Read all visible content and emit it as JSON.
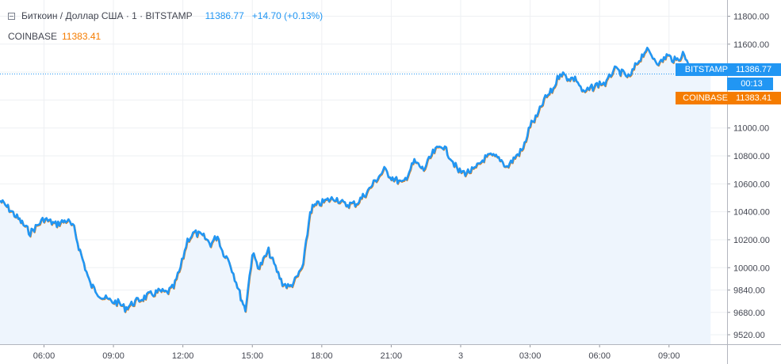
{
  "legend": {
    "title": "Биткоин / Доллар США · 1 · BITSTAMP",
    "last_value": "11386.77",
    "change": "+14.70 (+0.13%)",
    "secondary_name": "COINBASE",
    "secondary_value": "11383.41"
  },
  "price_tags": {
    "primary_label": "BITSTAMP",
    "primary_value": "11386.77",
    "countdown": "00:13",
    "secondary_label": "COINBASE",
    "secondary_value": "11383.41"
  },
  "colors": {
    "primary_line": "#2196f3",
    "primary_fill": "#eef5fd",
    "secondary_line": "#f57c00",
    "grid": "#eef0f3",
    "axis_text": "#434651"
  },
  "chart_data": {
    "type": "line",
    "grid": true,
    "y_ticks": [
      "11800.00",
      "11600.00",
      "11400.00",
      "11200.00",
      "11000.00",
      "10800.00",
      "10600.00",
      "10400.00",
      "10200.00",
      "10000.00",
      "9840.00",
      "9680.00",
      "9520.00"
    ],
    "y_tick_values": [
      11800,
      11600,
      11400,
      11200,
      11000,
      10800,
      10600,
      10400,
      10200,
      10000,
      9840,
      9680,
      9520
    ],
    "x_ticks": [
      "06:00",
      "09:00",
      "12:00",
      "15:00",
      "18:00",
      "21:00",
      "3",
      "03:00",
      "06:00",
      "09:00"
    ],
    "x_tick_hours": [
      6,
      9,
      12,
      15,
      18,
      21,
      24,
      27,
      30,
      33
    ],
    "x_range_hours": [
      4.1,
      35.2
    ],
    "series": [
      {
        "name": "BITSTAMP",
        "x": [
          4.1,
          4.5,
          5.0,
          5.4,
          5.7,
          6.0,
          6.5,
          7.0,
          7.3,
          7.5,
          8.0,
          8.5,
          8.9,
          9.2,
          9.5,
          10.0,
          10.5,
          11.0,
          11.3,
          11.6,
          11.9,
          12.2,
          12.5,
          12.9,
          13.2,
          13.5,
          13.7,
          14.0,
          14.3,
          14.5,
          14.7,
          15.0,
          15.3,
          15.7,
          16.0,
          16.3,
          16.6,
          16.9,
          17.2,
          17.5,
          17.6,
          17.8,
          18.2,
          18.6,
          19.0,
          19.5,
          20.0,
          20.3,
          20.7,
          21.0,
          21.5,
          22.0,
          22.4,
          22.8,
          23.2,
          23.6,
          23.9,
          24.2,
          24.6,
          25.0,
          25.3,
          25.7,
          26.0,
          26.4,
          26.7,
          27.0,
          27.3,
          27.6,
          28.0,
          28.3,
          28.6,
          29.0,
          29.3,
          29.6,
          30.0,
          30.3,
          30.6,
          30.9,
          31.3,
          31.6,
          32.0,
          32.3,
          32.6,
          32.9,
          33.3,
          33.6,
          34.0,
          34.3,
          34.6,
          34.8
        ],
        "y": [
          10480,
          10420,
          10330,
          10250,
          10300,
          10350,
          10310,
          10340,
          10280,
          10150,
          9880,
          9790,
          9760,
          9750,
          9710,
          9760,
          9800,
          9830,
          9820,
          9860,
          10000,
          10200,
          10250,
          10220,
          10170,
          10230,
          10120,
          10050,
          9900,
          9790,
          9700,
          10100,
          10000,
          10120,
          10000,
          9890,
          9860,
          9920,
          10020,
          10400,
          10430,
          10450,
          10480,
          10500,
          10450,
          10460,
          10550,
          10620,
          10700,
          10650,
          10600,
          10760,
          10700,
          10820,
          10880,
          10780,
          10690,
          10680,
          10700,
          10780,
          10800,
          10780,
          10720,
          10800,
          10850,
          11020,
          11080,
          11200,
          11280,
          11400,
          11360,
          11350,
          11250,
          11280,
          11320,
          11320,
          11420,
          11400,
          11360,
          11460,
          11560,
          11510,
          11460,
          11520,
          11480,
          11530,
          11430,
          11400,
          11420,
          11386.77
        ],
        "last": 11386.77
      },
      {
        "name": "COINBASE",
        "last": 11383.41
      }
    ]
  }
}
